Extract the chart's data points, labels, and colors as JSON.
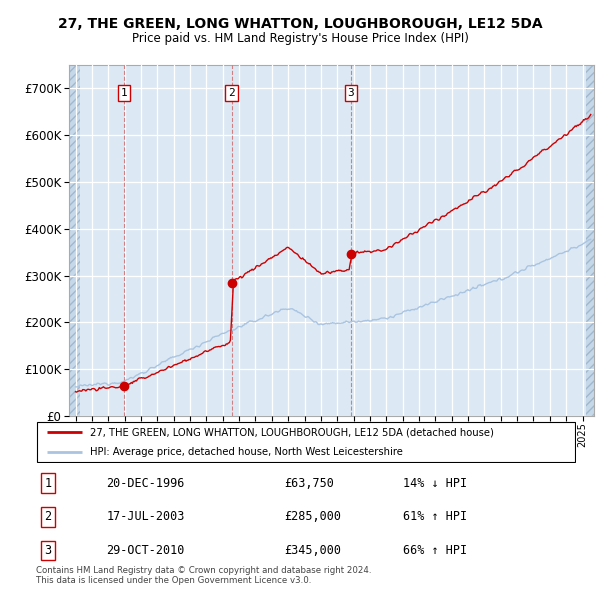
{
  "title": "27, THE GREEN, LONG WHATTON, LOUGHBOROUGH, LE12 5DA",
  "subtitle": "Price paid vs. HM Land Registry's House Price Index (HPI)",
  "transactions": [
    {
      "date": 1996.97,
      "price": 63750,
      "label": "1"
    },
    {
      "date": 2003.54,
      "price": 285000,
      "label": "2"
    },
    {
      "date": 2010.83,
      "price": 345000,
      "label": "3"
    }
  ],
  "hpi_color": "#aac4e0",
  "price_color": "#cc0000",
  "marker_color": "#cc0000",
  "background_plot": "#dce9f5",
  "ylim": [
    0,
    750000
  ],
  "yticks": [
    0,
    100000,
    200000,
    300000,
    400000,
    500000,
    600000,
    700000
  ],
  "xlim_start": 1993.6,
  "xlim_end": 2025.7,
  "hatch_end": 1994.3,
  "legend1": "27, THE GREEN, LONG WHATTON, LOUGHBOROUGH, LE12 5DA (detached house)",
  "legend2": "HPI: Average price, detached house, North West Leicestershire",
  "table_rows": [
    {
      "num": "1",
      "date": "20-DEC-1996",
      "price": "£63,750",
      "hpi": "14% ↓ HPI"
    },
    {
      "num": "2",
      "date": "17-JUL-2003",
      "price": "£285,000",
      "hpi": "61% ↑ HPI"
    },
    {
      "num": "3",
      "date": "29-OCT-2010",
      "price": "£345,000",
      "hpi": "66% ↑ HPI"
    }
  ],
  "footer": "Contains HM Land Registry data © Crown copyright and database right 2024.\nThis data is licensed under the Open Government Licence v3.0."
}
